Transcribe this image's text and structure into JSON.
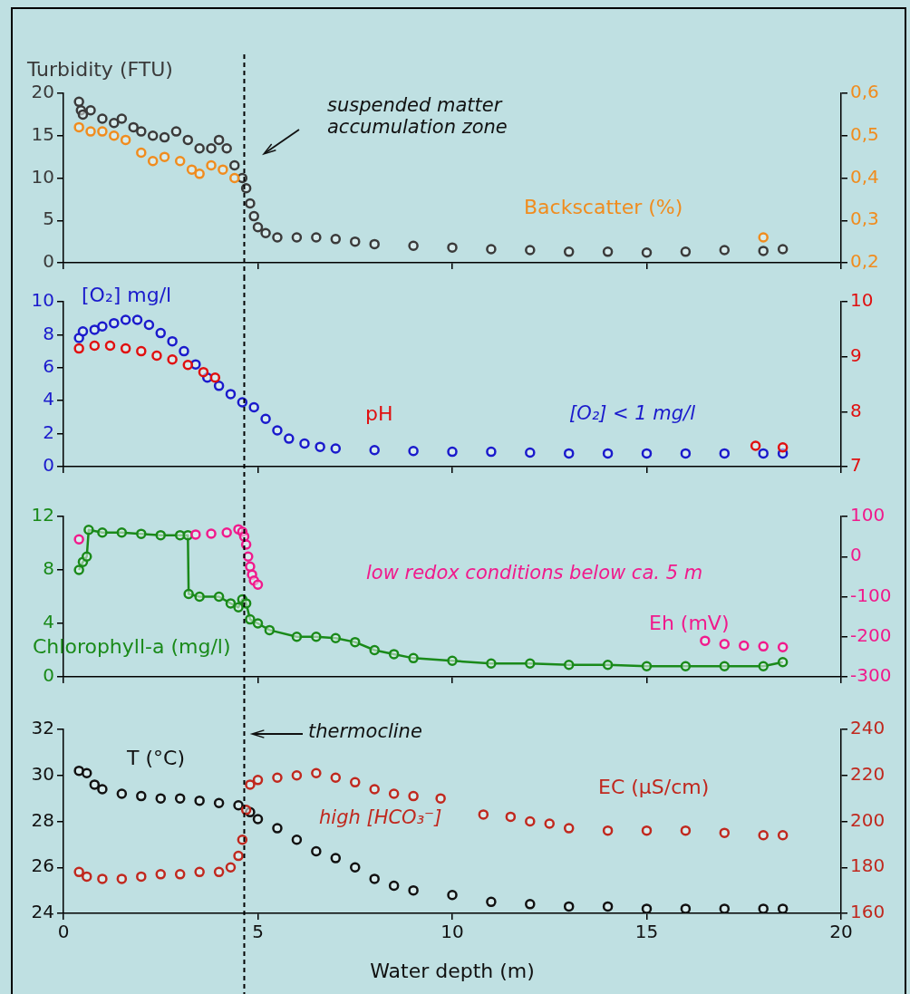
{
  "chart_data": [
    {
      "type": "scatter",
      "ylabel": "Turbidity (FTU)",
      "xlim": [
        0,
        20
      ],
      "xticks": [
        0,
        5,
        10,
        15,
        20
      ],
      "ylim": [
        0,
        20
      ],
      "yticks": [
        0,
        5,
        10,
        15,
        20
      ],
      "y2lim": [
        0.2,
        0.6
      ],
      "y2ticks": [
        {
          "value": 0.2,
          "label": "0,2"
        },
        {
          "value": 0.3,
          "label": "0,3"
        },
        {
          "value": 0.4,
          "label": "0,4"
        },
        {
          "value": 0.5,
          "label": "0,5"
        },
        {
          "value": 0.6,
          "label": "0,6"
        }
      ],
      "tick_labels": "y",
      "marker": "circle",
      "grid": false,
      "legend": false,
      "ref_lines": [
        {
          "axis": "x",
          "value": 4.65,
          "color": "#000000",
          "line_style": "dashed"
        }
      ],
      "annotations": [
        "suspended matter\naccumulation zone"
      ],
      "series": [
        {
          "name": "Backscatter (%)",
          "color": "#f08c1e",
          "axis": "y2",
          "x": [
            0.4,
            0.7,
            1.0,
            1.3,
            1.6,
            2.0,
            2.3,
            2.6,
            3.0,
            3.3,
            3.5,
            3.8,
            4.1,
            4.4,
            18.0
          ],
          "values": [
            0.52,
            0.51,
            0.51,
            0.5,
            0.49,
            0.46,
            0.44,
            0.45,
            0.44,
            0.42,
            0.41,
            0.43,
            0.42,
            0.4,
            0.26
          ]
        },
        {
          "color": "#3a3a3a",
          "axis": "y",
          "x": [
            0.4,
            0.45,
            0.5,
            0.7,
            1.0,
            1.3,
            1.5,
            1.8,
            2.0,
            2.3,
            2.6,
            2.9,
            3.2,
            3.5,
            3.8,
            4.0,
            4.2,
            4.4,
            4.6,
            4.7,
            4.8,
            4.9,
            5.0,
            5.2,
            5.5,
            6,
            6.5,
            7,
            7.5,
            8,
            9,
            10,
            11,
            12,
            13,
            14,
            15,
            16,
            17,
            18,
            18.5
          ],
          "values": [
            19,
            18,
            17.5,
            18,
            17,
            16.5,
            17,
            16,
            15.5,
            15,
            14.8,
            15.5,
            14.5,
            13.5,
            13.5,
            14.5,
            13.5,
            11.5,
            10,
            8.8,
            7,
            5.5,
            4.2,
            3.5,
            3,
            3,
            3,
            2.8,
            2.5,
            2.2,
            2,
            1.8,
            1.6,
            1.5,
            1.3,
            1.3,
            1.2,
            1.3,
            1.5,
            1.4,
            1.6
          ]
        }
      ]
    },
    {
      "type": "scatter",
      "ylabel": "[O₂] mg/l",
      "xlim": [
        0,
        20
      ],
      "xticks": [
        0,
        5,
        10,
        15,
        20
      ],
      "ylim": [
        0,
        10
      ],
      "yticks": [
        0,
        2,
        4,
        6,
        8,
        10
      ],
      "y2lim": [
        7,
        10
      ],
      "y2ticks": [
        7,
        8,
        9,
        10
      ],
      "tick_labels": "y",
      "marker": "circle",
      "grid": false,
      "legend": false,
      "ref_lines": [
        {
          "axis": "x",
          "value": 4.65,
          "color": "#000000",
          "line_style": "dashed"
        }
      ],
      "annotations": [
        "[O₂] < 1 mg/l"
      ],
      "series": [
        {
          "name": "pH",
          "color": "#e01010",
          "axis": "y2",
          "x": [
            0.4,
            0.8,
            1.2,
            1.6,
            2.0,
            2.4,
            2.8,
            3.2,
            3.6,
            3.9,
            17.8,
            18.5
          ],
          "values": [
            9.15,
            9.2,
            9.2,
            9.15,
            9.1,
            9.02,
            8.95,
            8.85,
            8.72,
            8.62,
            7.38,
            7.35
          ]
        },
        {
          "color": "#1a1acc",
          "axis": "y",
          "x": [
            0.4,
            0.5,
            0.8,
            1.0,
            1.3,
            1.6,
            1.9,
            2.2,
            2.5,
            2.8,
            3.1,
            3.4,
            3.7,
            4.0,
            4.3,
            4.6,
            4.9,
            5.2,
            5.5,
            5.8,
            6.2,
            6.6,
            7,
            8,
            9,
            10,
            11,
            12,
            13,
            14,
            15,
            16,
            17,
            18,
            18.5
          ],
          "values": [
            7.8,
            8.2,
            8.3,
            8.5,
            8.7,
            8.9,
            8.9,
            8.6,
            8.1,
            7.6,
            7.0,
            6.2,
            5.4,
            4.9,
            4.4,
            3.9,
            3.6,
            2.9,
            2.2,
            1.7,
            1.4,
            1.2,
            1.1,
            1.0,
            0.95,
            0.9,
            0.9,
            0.85,
            0.8,
            0.8,
            0.8,
            0.8,
            0.8,
            0.8,
            0.8
          ]
        }
      ]
    },
    {
      "type": "scatter",
      "ylabel": "Chlorophyll-a (mg/l)",
      "xlim": [
        0,
        20
      ],
      "xticks": [
        0,
        5,
        10,
        15,
        20
      ],
      "ylim": [
        0,
        12
      ],
      "yticks": [
        0,
        4,
        8,
        12
      ],
      "y2lim": [
        -300,
        100
      ],
      "y2ticks": [
        -300,
        -200,
        -100,
        0,
        100
      ],
      "tick_labels": "y",
      "marker": "circle",
      "grid": false,
      "legend": false,
      "ref_lines": [
        {
          "axis": "x",
          "value": 4.65,
          "color": "#000000",
          "line_style": "dashed"
        }
      ],
      "annotations": [
        "low redox conditions below ca. 5 m"
      ],
      "series": [
        {
          "name": "Eh (mV)",
          "color": "#f01a8c",
          "axis": "y2",
          "x": [
            0.4,
            3.4,
            3.8,
            4.2,
            4.5,
            4.6,
            4.65,
            4.7,
            4.75,
            4.8,
            4.85,
            4.9,
            5.0,
            16.5,
            17,
            17.5,
            18,
            18.5
          ],
          "values": [
            43,
            55,
            57,
            60,
            68,
            62,
            50,
            30,
            0,
            -25,
            -45,
            -60,
            -70,
            -210,
            -218,
            -222,
            -224,
            -226
          ]
        },
        {
          "type": "line",
          "line_style": "solid",
          "color": "#1a8a1a",
          "axis": "y",
          "x": [
            0.4,
            0.5,
            0.6,
            0.65,
            1.0,
            1.5,
            2.0,
            2.5,
            3.0,
            3.2,
            3.22,
            3.5,
            4.0,
            4.3,
            4.5,
            4.6,
            4.7,
            4.8,
            5.0,
            5.3,
            6,
            6.5,
            7.0,
            7.5,
            8,
            8.5,
            9,
            10,
            11,
            12,
            13,
            14,
            15,
            16,
            17,
            18,
            18.5
          ],
          "values": [
            8.0,
            8.6,
            9.0,
            11.0,
            10.8,
            10.8,
            10.7,
            10.6,
            10.6,
            10.6,
            6.2,
            6.0,
            6.0,
            5.5,
            5.2,
            5.8,
            5.5,
            4.3,
            4.0,
            3.5,
            3.0,
            3.0,
            2.9,
            2.6,
            2.0,
            1.7,
            1.4,
            1.2,
            1.0,
            1.0,
            0.9,
            0.9,
            0.8,
            0.8,
            0.8,
            0.8,
            1.1
          ]
        }
      ]
    },
    {
      "type": "scatter",
      "ylabel": "T (°C)",
      "xlabel": "Water depth (m)",
      "xlim": [
        0,
        20
      ],
      "xticks": [
        0,
        5,
        10,
        15,
        20
      ],
      "ylim": [
        24,
        32
      ],
      "yticks": [
        24,
        26,
        28,
        30,
        32
      ],
      "y2lim": [
        160,
        240
      ],
      "y2ticks": [
        160,
        180,
        200,
        220,
        240
      ],
      "marker": "circle",
      "grid": false,
      "legend": false,
      "ref_lines": [
        {
          "axis": "x",
          "value": 4.65,
          "color": "#000000",
          "line_style": "dashed"
        }
      ],
      "annotations": [
        "thermocline",
        "high [HCO₃⁻]"
      ],
      "series": [
        {
          "name": "EC (µS/cm)",
          "color": "#c0281e",
          "axis": "y2",
          "x": [
            0.4,
            0.6,
            1,
            1.5,
            2,
            2.5,
            3,
            3.5,
            4,
            4.3,
            4.5,
            4.6,
            4.7,
            4.8,
            5,
            5.5,
            6,
            6.5,
            7,
            7.5,
            8,
            8.5,
            9,
            9.7,
            10.3,
            10.8,
            11.5,
            12,
            12.5,
            13,
            14,
            15,
            16,
            17,
            18,
            18.5
          ],
          "values": [
            178,
            176,
            175,
            175,
            176,
            177,
            177,
            178,
            178,
            180,
            185,
            192,
            205,
            216,
            218,
            219,
            220,
            221,
            219,
            217,
            214,
            212,
            211,
            210,
            null,
            203,
            202,
            200,
            199,
            197,
            196,
            196,
            196,
            195,
            194,
            194
          ]
        },
        {
          "color": "#111111",
          "axis": "y",
          "x": [
            0.4,
            0.6,
            0.8,
            1.0,
            1.5,
            2,
            2.5,
            3,
            3.5,
            4,
            4.5,
            4.8,
            5,
            5.5,
            6,
            6.5,
            7,
            7.5,
            8,
            8.5,
            9,
            10,
            11,
            12,
            13,
            14,
            15,
            16,
            17,
            18,
            18.5
          ],
          "values": [
            30.2,
            30.1,
            29.6,
            29.4,
            29.2,
            29.1,
            29.0,
            29.0,
            28.9,
            28.8,
            28.7,
            28.4,
            28.1,
            27.7,
            27.2,
            26.7,
            26.4,
            26.0,
            25.5,
            25.2,
            25.0,
            24.8,
            24.5,
            24.4,
            24.3,
            24.3,
            24.2,
            24.2,
            24.2,
            24.2,
            24.2
          ]
        }
      ]
    }
  ]
}
